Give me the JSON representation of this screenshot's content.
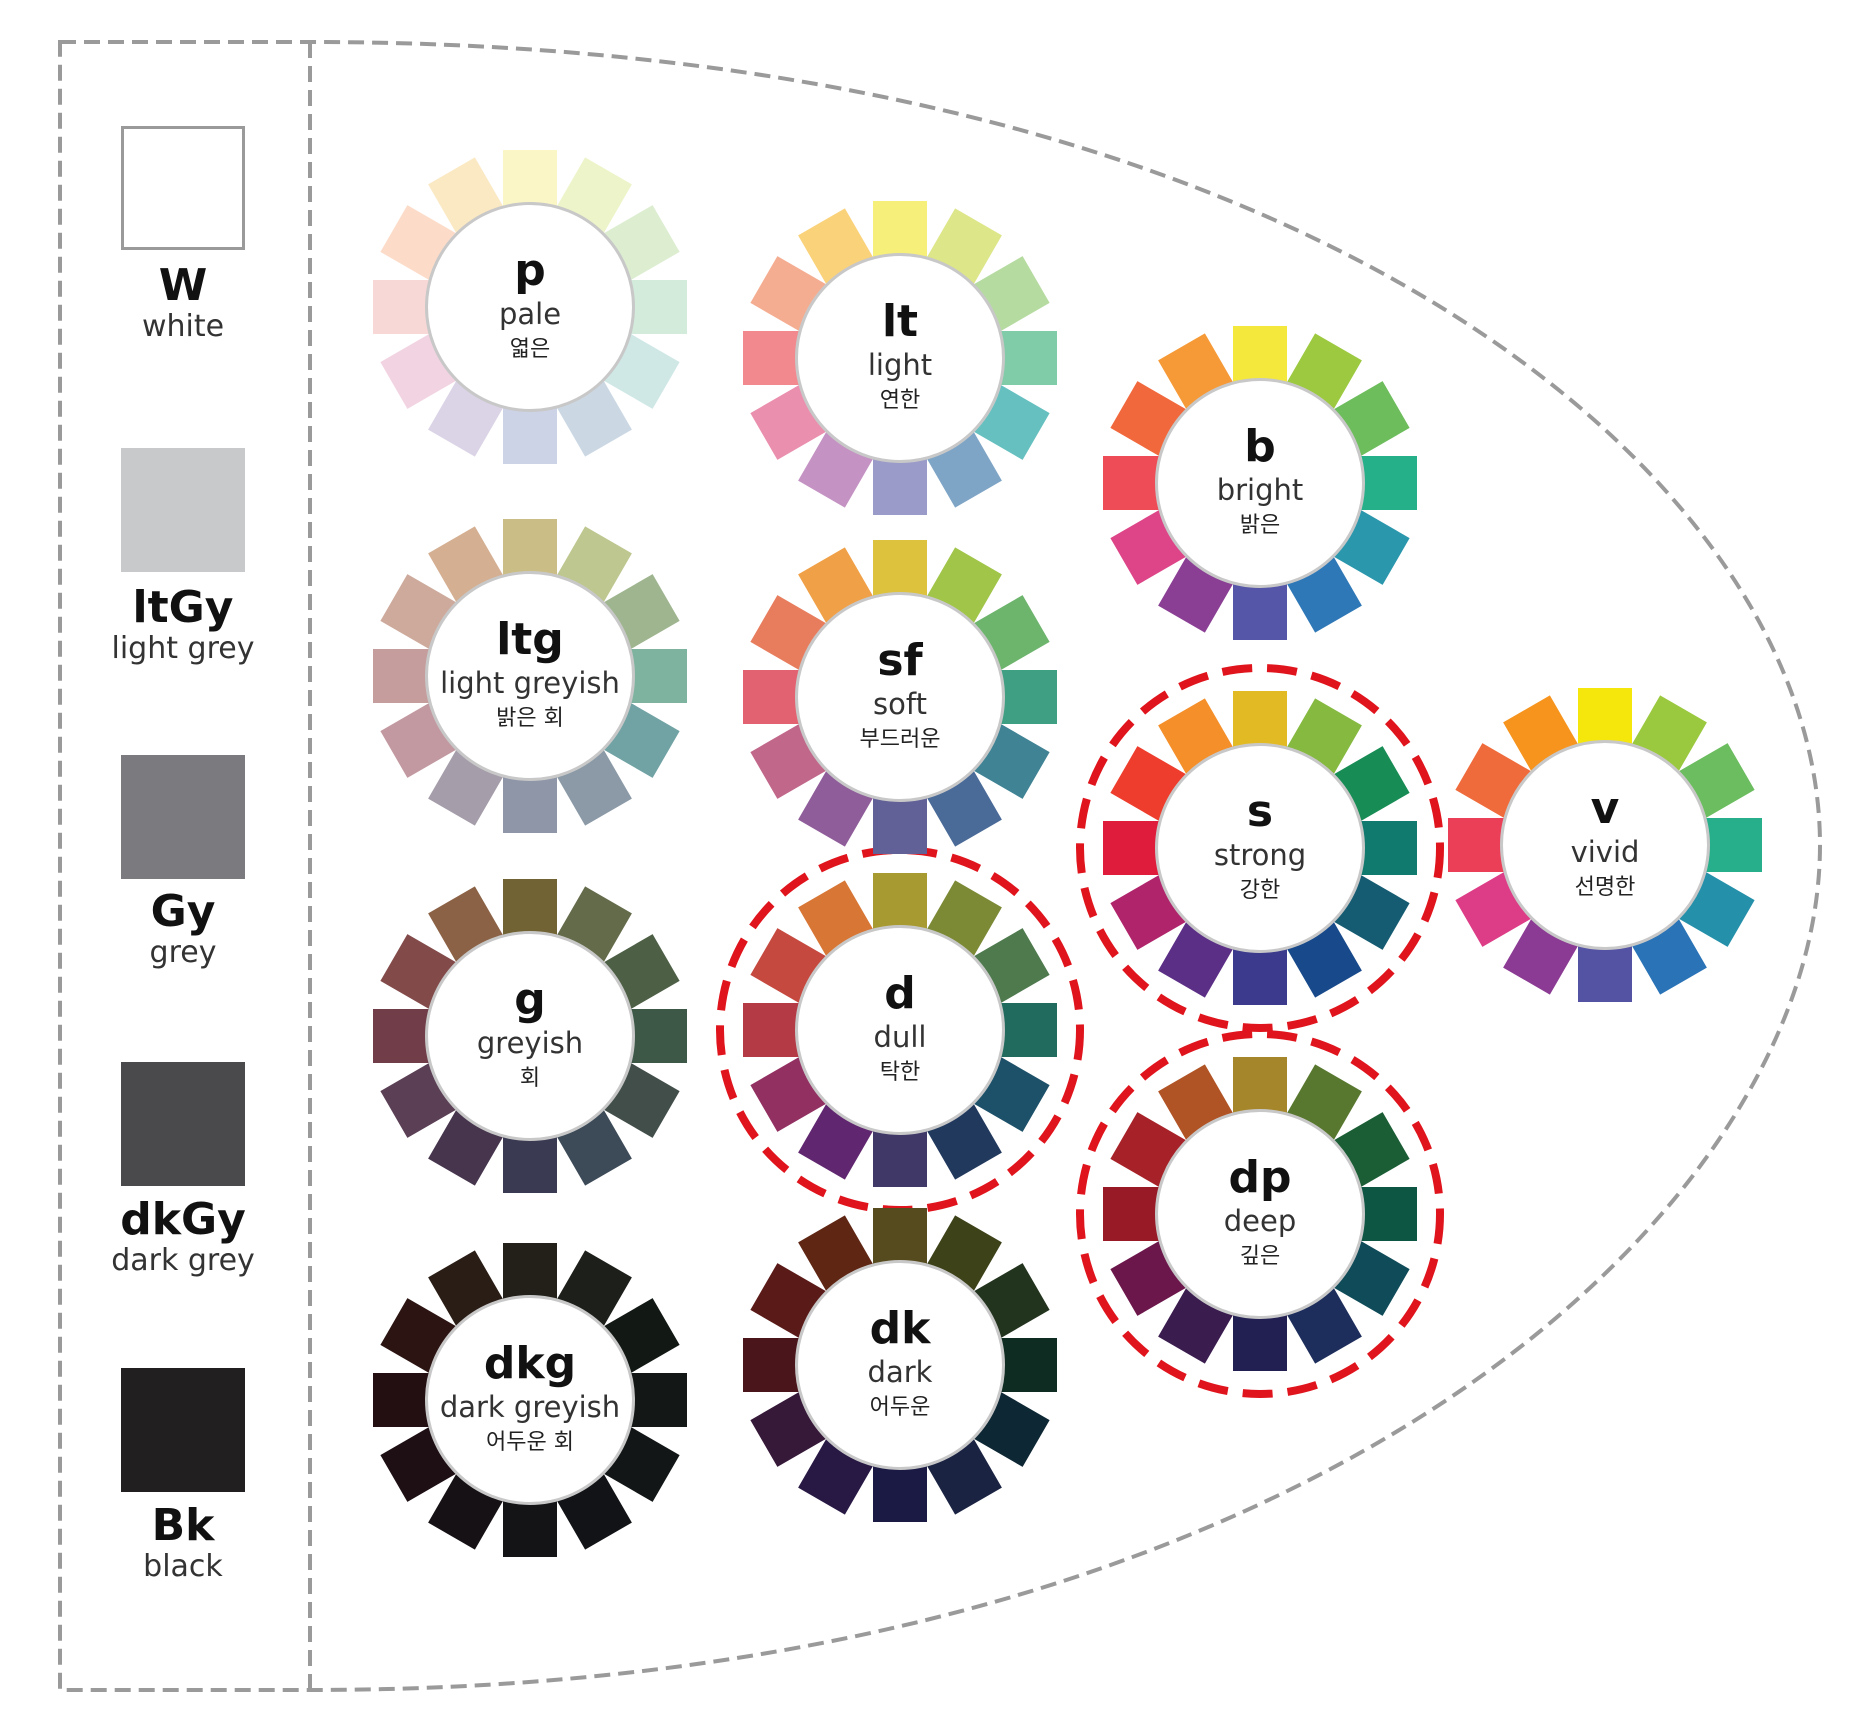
{
  "neutrals": [
    {
      "code": "W",
      "name": "white",
      "color": "#ffffff"
    },
    {
      "code": "ltGy",
      "name": "light grey",
      "color": "#c8c9cb"
    },
    {
      "code": "Gy",
      "name": "grey",
      "color": "#7a7a7f"
    },
    {
      "code": "dkGy",
      "name": "dark grey",
      "color": "#4a4a4d"
    },
    {
      "code": "Bk",
      "name": "black",
      "color": "#221f20"
    }
  ],
  "tones": [
    {
      "code": "p",
      "name": "pale",
      "ko": "엷은",
      "highlighted": false,
      "colors": [
        "#fbf6c6",
        "#eef4c9",
        "#dcedd0",
        "#d3ebdb",
        "#cfe8e6",
        "#cbd8e4",
        "#cdd3e6",
        "#dbd3e6",
        "#f2d3e1",
        "#f7d8d6",
        "#fcdcc9",
        "#fbe9c4"
      ]
    },
    {
      "code": "lt",
      "name": "light",
      "ko": "연한",
      "highlighted": false,
      "colors": [
        "#f6f07b",
        "#dde688",
        "#b6dba1",
        "#80cba8",
        "#66c0c0",
        "#7fa5c6",
        "#9b9bc9",
        "#c493c3",
        "#ea8fae",
        "#f2898f",
        "#f5ad92",
        "#fad27a"
      ]
    },
    {
      "code": "b",
      "name": "bright",
      "ko": "밝은",
      "highlighted": false,
      "colors": [
        "#f3e83b",
        "#9cc93f",
        "#6dbd5d",
        "#26b08a",
        "#2a97ad",
        "#2f78b7",
        "#5556a7",
        "#8a3f94",
        "#dd4588",
        "#ee4c57",
        "#f1683c",
        "#f69a37"
      ]
    },
    {
      "code": "v",
      "name": "vivid",
      "ko": "선명한",
      "highlighted": false,
      "colors": [
        "#f5e70c",
        "#9ac83e",
        "#6cbd5f",
        "#27ae8a",
        "#2590aa",
        "#2a73b6",
        "#5452a3",
        "#8b3b93",
        "#dd3c87",
        "#ea3f57",
        "#ef6b3b",
        "#f6941e"
      ]
    },
    {
      "code": "ltg",
      "name": "light greyish",
      "ko": "밝은 회",
      "highlighted": false,
      "colors": [
        "#cbbd86",
        "#bec78f",
        "#9fb58f",
        "#7eb49f",
        "#71a2a4",
        "#8b9aa6",
        "#8e96a8",
        "#a59daa",
        "#c299a1",
        "#c59d9c",
        "#cdaa9c",
        "#d4af92"
      ]
    },
    {
      "code": "sf",
      "name": "soft",
      "ko": "부드러운",
      "highlighted": false,
      "colors": [
        "#dcc23d",
        "#a0c548",
        "#6db46d",
        "#3f9f82",
        "#3f8394",
        "#4a6a98",
        "#616197",
        "#8f5d9a",
        "#c1678a",
        "#e26271",
        "#e87d5e",
        "#f0a046"
      ]
    },
    {
      "code": "s",
      "name": "strong",
      "ko": "강한",
      "highlighted": true,
      "colors": [
        "#e2bb24",
        "#86b940",
        "#188c55",
        "#107a6e",
        "#155c72",
        "#184a8b",
        "#3b3a8c",
        "#5c2f86",
        "#b0246b",
        "#e01c3d",
        "#ee3d2c",
        "#f48f2a"
      ]
    },
    {
      "code": "g",
      "name": "greyish",
      "ko": "회",
      "highlighted": false,
      "colors": [
        "#726335",
        "#636b4a",
        "#4d5f45",
        "#3e5848",
        "#424e4a",
        "#3d4a58",
        "#3a3a52",
        "#46354d",
        "#5a3f55",
        "#703d48",
        "#834a4a",
        "#8b6246"
      ]
    },
    {
      "code": "d",
      "name": "dull",
      "ko": "탁한",
      "highlighted": true,
      "colors": [
        "#a79a30",
        "#7c8a36",
        "#4e7a4e",
        "#216b5e",
        "#1d5169",
        "#22395e",
        "#403967",
        "#602770",
        "#923062",
        "#b43a45",
        "#c5493f",
        "#d77635"
      ]
    },
    {
      "code": "dp",
      "name": "deep",
      "ko": "깊은",
      "highlighted": true,
      "colors": [
        "#a6862a",
        "#59782f",
        "#1b5e35",
        "#0e5644",
        "#0f4b58",
        "#1e2e5c",
        "#222053",
        "#3a1c4f",
        "#6c174b",
        "#981a27",
        "#a72228",
        "#b05325"
      ]
    },
    {
      "code": "dkg",
      "name": "dark greyish",
      "ko": "어두운 회",
      "highlighted": false,
      "colors": [
        "#23201a",
        "#1d1f1a",
        "#121814",
        "#131715",
        "#121616",
        "#111316",
        "#141315",
        "#161114",
        "#1d0f14",
        "#230f12",
        "#2c1412",
        "#2a1d16"
      ]
    },
    {
      "code": "dk",
      "name": "dark",
      "ko": "어두운",
      "highlighted": false,
      "colors": [
        "#564b1e",
        "#3e4219",
        "#22331e",
        "#0f2c22",
        "#0e2734",
        "#1a2342",
        "#1b1a44",
        "#281844",
        "#361839",
        "#4b151c",
        "#5a1a18",
        "#5f2614"
      ]
    }
  ]
}
